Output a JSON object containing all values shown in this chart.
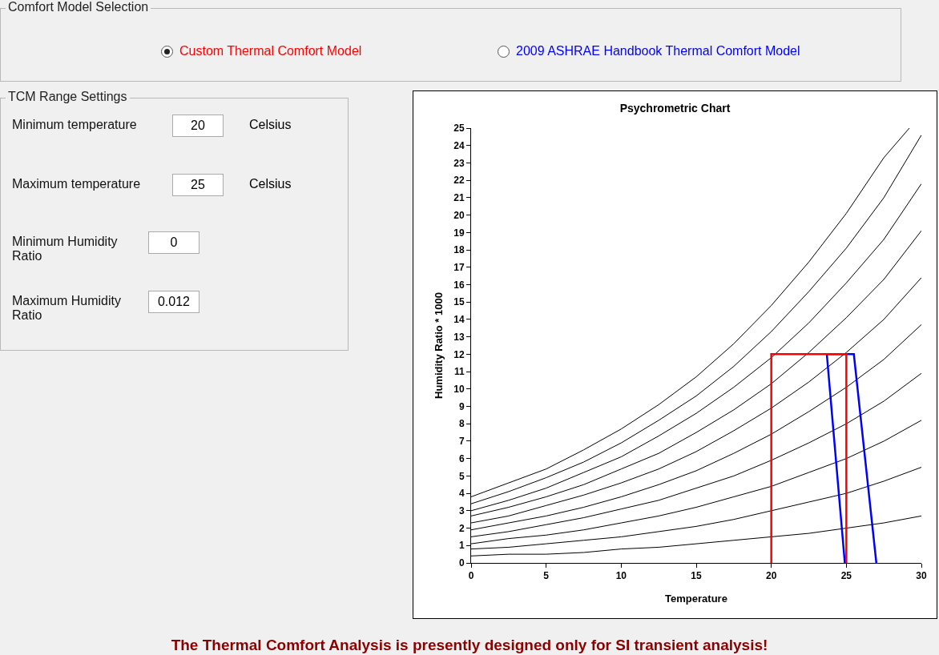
{
  "chart_data": [
    {
      "type": "other",
      "title": "Comfort Model Selection",
      "categories": [
        "Custom Thermal Comfort Model",
        "2009 ASHRAE Handbook Thermal Comfort Model"
      ]
    },
    {
      "type": "other",
      "title": "TCM Range Settings",
      "categories": [
        "Minimum temperature",
        "Maximum temperature",
        "Minimum Humidity Ratio",
        "Maximum Humidity Ratio"
      ],
      "values": [
        20,
        25,
        0,
        0.012
      ],
      "data_labels": true,
      "annotations": [
        "Celsius",
        "Celsius"
      ]
    },
    {
      "type": "line",
      "title": "Psychrometric Chart",
      "xlabel": "Temperature",
      "ylabel": "Humidity Ratio * 1000",
      "xlim": [
        0,
        30
      ],
      "xticks": [
        0,
        5,
        10,
        15,
        20,
        25,
        30
      ],
      "ylim": [
        0,
        25
      ],
      "yticks": [
        0,
        1,
        2,
        3,
        4,
        5,
        6,
        7,
        8,
        9,
        10,
        11,
        12,
        13,
        14,
        15,
        16,
        17,
        18,
        19,
        20,
        21,
        22,
        23,
        24,
        25
      ],
      "grid": false,
      "marker": "none",
      "line_style": "solid",
      "x": [
        0,
        2.5,
        5,
        7.5,
        10,
        12.5,
        15,
        17.5,
        20,
        22.5,
        25,
        27.5,
        30
      ],
      "series": [
        {
          "color": "#000000",
          "x": [
            0,
            2.5,
            5,
            7.5,
            10,
            12.5,
            15,
            17.5,
            20,
            22.5,
            25,
            27.5,
            29.2
          ],
          "values": [
            3.8,
            4.6,
            5.4,
            6.5,
            7.7,
            9.1,
            10.7,
            12.6,
            14.8,
            17.3,
            20.1,
            23.3,
            25.0
          ]
        },
        {
          "color": "#000000",
          "values": [
            3.4,
            4.1,
            4.9,
            5.8,
            6.9,
            8.2,
            9.6,
            11.3,
            13.3,
            15.6,
            18.1,
            21.0,
            24.6
          ]
        },
        {
          "color": "#000000",
          "values": [
            3.0,
            3.6,
            4.3,
            5.2,
            6.1,
            7.3,
            8.6,
            10.1,
            11.8,
            13.8,
            16.1,
            18.6,
            21.8
          ]
        },
        {
          "color": "#000000",
          "values": [
            2.7,
            3.2,
            3.8,
            4.5,
            5.4,
            6.3,
            7.5,
            8.8,
            10.3,
            12.1,
            14.1,
            16.3,
            19.1
          ]
        },
        {
          "color": "#000000",
          "values": [
            2.3,
            2.7,
            3.3,
            3.9,
            4.6,
            5.4,
            6.4,
            7.6,
            8.9,
            10.4,
            12.1,
            14.0,
            16.4
          ]
        },
        {
          "color": "#000000",
          "values": [
            1.9,
            2.3,
            2.7,
            3.2,
            3.8,
            4.5,
            5.3,
            6.3,
            7.4,
            8.7,
            10.1,
            11.7,
            13.7
          ]
        },
        {
          "color": "#000000",
          "values": [
            1.5,
            1.8,
            2.2,
            2.6,
            3.1,
            3.6,
            4.3,
            5.0,
            5.9,
            6.9,
            8.0,
            9.3,
            10.9
          ]
        },
        {
          "color": "#000000",
          "values": [
            1.1,
            1.4,
            1.6,
            1.9,
            2.3,
            2.7,
            3.2,
            3.8,
            4.4,
            5.2,
            6.0,
            7.0,
            8.2
          ]
        },
        {
          "color": "#000000",
          "values": [
            0.8,
            0.9,
            1.1,
            1.3,
            1.5,
            1.8,
            2.1,
            2.5,
            3.0,
            3.5,
            4.0,
            4.7,
            5.5
          ]
        },
        {
          "color": "#000000",
          "values": [
            0.4,
            0.5,
            0.5,
            0.6,
            0.8,
            0.9,
            1.1,
            1.3,
            1.5,
            1.7,
            2.0,
            2.3,
            2.7
          ]
        },
        {
          "color": "#0000ff",
          "x": [
            24.9,
            23.7,
            25.5,
            27
          ],
          "values": [
            0,
            12,
            12,
            0
          ]
        },
        {
          "color": "#ff0000",
          "x": [
            20,
            20,
            25,
            25
          ],
          "values": [
            0,
            12,
            12,
            0
          ]
        }
      ],
      "annotations": [
        "The Thermal Comfort Analysis is presently designed only for SI transient analysis!"
      ]
    }
  ]
}
